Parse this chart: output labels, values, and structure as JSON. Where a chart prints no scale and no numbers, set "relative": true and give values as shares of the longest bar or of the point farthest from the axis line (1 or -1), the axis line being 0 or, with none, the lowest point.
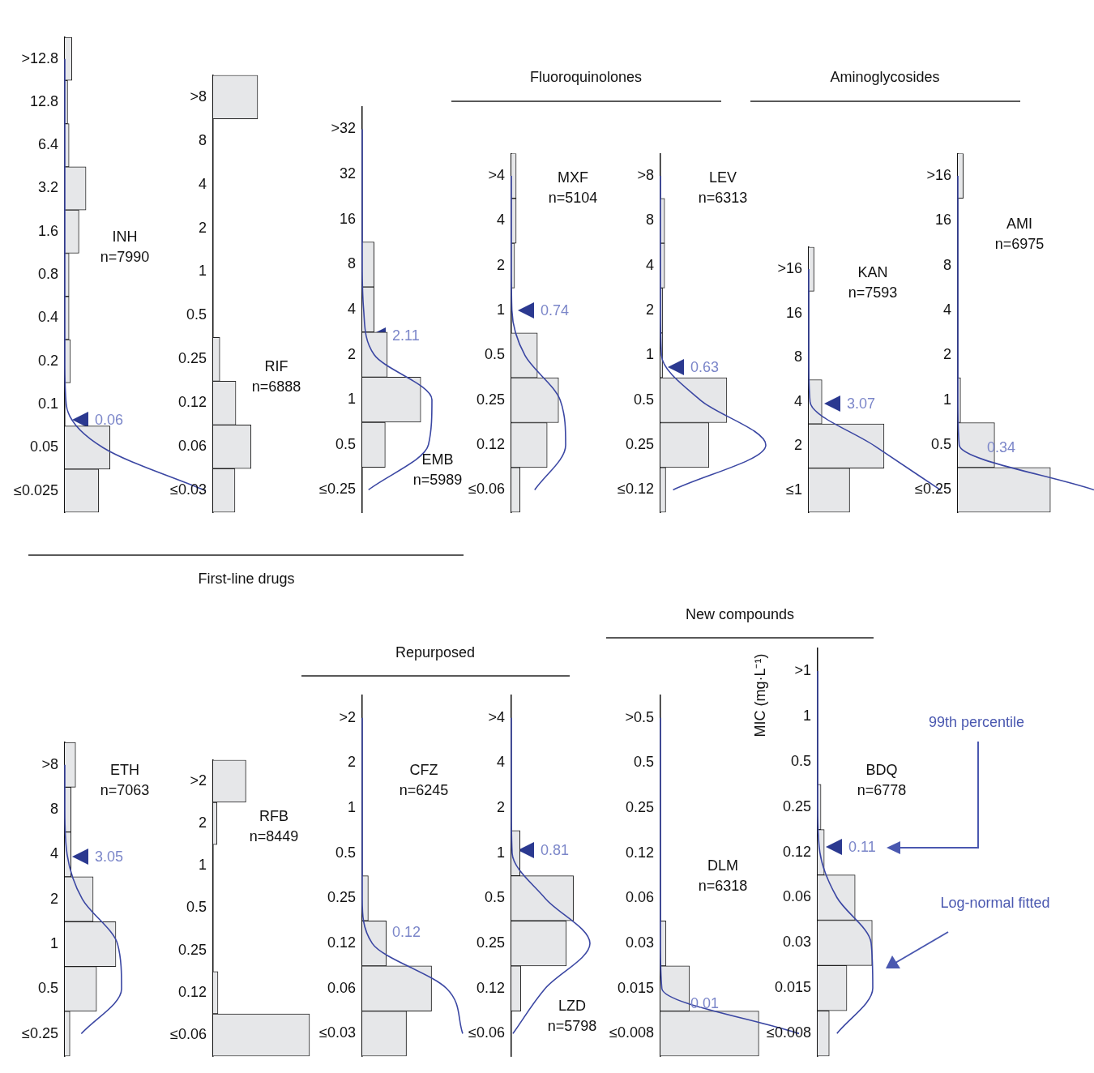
{
  "chart_data": [
    {
      "type": "bar",
      "orientation": "horizontal",
      "relative": true,
      "marker": "none",
      "title": "INH",
      "subtitle": "n=7990",
      "categories": [
        ">12.8",
        "12.8",
        "6.4",
        "3.2",
        "1.6",
        "0.8",
        "0.4",
        "0.2",
        "0.1",
        "0.05",
        "≤0.025"
      ],
      "series": [
        {
          "type": "bar",
          "color": "#e6e7e9",
          "values": [
            0.05,
            0.02,
            0.03,
            0.15,
            0.1,
            0.03,
            0.03,
            0.04,
            0,
            0.32,
            0.24
          ]
        },
        {
          "type": "line",
          "color": "#3b47a3",
          "values": [
            0,
            0,
            0,
            0,
            0,
            0,
            0,
            0,
            0.01,
            0.27,
            1
          ]
        }
      ],
      "annotations": [
        "0.06",
        "First-line drugs"
      ]
    },
    {
      "type": "bar",
      "orientation": "horizontal",
      "relative": true,
      "title": "RIF",
      "subtitle": "n=6888",
      "categories": [
        ">8",
        "8",
        "4",
        "2",
        "1",
        "0.5",
        "0.25",
        "0.12",
        "0.06",
        "≤0.03"
      ],
      "series": [
        {
          "type": "bar",
          "color": "#e6e7e9",
          "values": [
            1,
            0,
            0,
            0,
            0,
            0,
            0.15,
            0.51,
            0.85,
            0.49
          ]
        }
      ]
    },
    {
      "type": "bar",
      "orientation": "horizontal",
      "relative": true,
      "marker": "none",
      "title": "EMB",
      "subtitle": "n=5989",
      "categories": [
        ">32",
        "32",
        "16",
        "8",
        "4",
        "2",
        "1",
        "0.5",
        "≤0.25"
      ],
      "series": [
        {
          "type": "bar",
          "color": "#e6e7e9",
          "values": [
            0,
            0,
            0,
            0.17,
            0.17,
            0.36,
            0.84,
            0.33,
            0
          ]
        },
        {
          "type": "line",
          "color": "#3b47a3",
          "values": [
            0,
            0,
            0,
            0,
            0.02,
            0.17,
            1,
            0.95,
            0.09
          ]
        }
      ],
      "annotations": [
        "2.11"
      ]
    },
    {
      "type": "bar",
      "orientation": "horizontal",
      "relative": true,
      "marker": "none",
      "title": "MXF",
      "subtitle": "n=5104",
      "categories": [
        ">4",
        "4",
        "2",
        "1",
        "0.5",
        "0.25",
        "0.12",
        "≤0.06"
      ],
      "series": [
        {
          "type": "bar",
          "color": "#e6e7e9",
          "values": [
            0.09,
            0.09,
            0.06,
            0,
            0.48,
            0.87,
            0.66,
            0.16
          ]
        },
        {
          "type": "line",
          "color": "#3b47a3",
          "values": [
            0,
            0,
            0,
            0.01,
            0.25,
            0.9,
            1,
            0.43
          ]
        }
      ],
      "annotations": [
        "0.74",
        "Fluoroquinolones"
      ]
    },
    {
      "type": "bar",
      "orientation": "horizontal",
      "relative": true,
      "marker": "none",
      "title": "LEV",
      "subtitle": "n=6313",
      "categories": [
        ">8",
        "8",
        "4",
        "2",
        "1",
        "0.5",
        "0.25",
        "≤0.12"
      ],
      "series": [
        {
          "type": "bar",
          "color": "#e6e7e9",
          "values": [
            0,
            0.04,
            0.04,
            0.02,
            0.02,
            0.63,
            0.46,
            0.05
          ]
        },
        {
          "type": "line",
          "color": "#3b47a3",
          "values": [
            0,
            0,
            0,
            0,
            0.01,
            0.38,
            1,
            0.12
          ]
        }
      ],
      "annotations": [
        "0.63"
      ]
    },
    {
      "type": "bar",
      "orientation": "horizontal",
      "relative": true,
      "marker": "none",
      "title": "KAN",
      "subtitle": "n=7593",
      "categories": [
        ">16",
        "16",
        "8",
        "4",
        "2",
        "≤1"
      ],
      "series": [
        {
          "type": "bar",
          "color": "#e6e7e9",
          "values": [
            0.04,
            0,
            0,
            0.1,
            0.57,
            0.31
          ]
        },
        {
          "type": "line",
          "color": "#3b47a3",
          "values": [
            0,
            0,
            0,
            0.01,
            0.5,
            1
          ]
        }
      ],
      "annotations": [
        "3.07",
        "Aminoglycosides"
      ]
    },
    {
      "type": "bar",
      "orientation": "horizontal",
      "relative": true,
      "marker": "none",
      "title": "AMI",
      "subtitle": "n=6975",
      "categories": [
        ">16",
        "16",
        "8",
        "4",
        "2",
        "1",
        "0.5",
        "≤0.25"
      ],
      "series": [
        {
          "type": "bar",
          "color": "#e6e7e9",
          "values": [
            0.04,
            0,
            0,
            0,
            0,
            0.02,
            0.27,
            0.68
          ]
        },
        {
          "type": "line",
          "color": "#3b47a3",
          "values": [
            0,
            0,
            0,
            0,
            0,
            0,
            0.01,
            1
          ]
        }
      ],
      "annotations": [
        "0.34"
      ]
    },
    {
      "type": "bar",
      "orientation": "horizontal",
      "relative": true,
      "marker": "none",
      "title": "ETH",
      "subtitle": "n=7063",
      "categories": [
        ">8",
        "8",
        "4",
        "2",
        "1",
        "0.5",
        "≤0.25"
      ],
      "series": [
        {
          "type": "bar",
          "color": "#e6e7e9",
          "values": [
            0.19,
            0.11,
            0.11,
            0.5,
            0.9,
            0.56,
            0.09
          ]
        },
        {
          "type": "line",
          "color": "#3b47a3",
          "values": [
            0,
            0,
            0.04,
            0.31,
            0.93,
            1,
            0.29
          ]
        }
      ],
      "annotations": [
        "3.05"
      ]
    },
    {
      "type": "bar",
      "orientation": "horizontal",
      "relative": true,
      "title": "RFB",
      "subtitle": "n=8449",
      "categories": [
        ">2",
        "2",
        "1",
        "0.5",
        "0.25",
        "0.12",
        "≤0.06"
      ],
      "series": [
        {
          "type": "bar",
          "color": "#e6e7e9",
          "values": [
            0.34,
            0.04,
            0,
            0,
            0,
            0.05,
            1
          ]
        }
      ]
    },
    {
      "type": "bar",
      "orientation": "horizontal",
      "relative": true,
      "marker": "none",
      "title": "CFZ",
      "subtitle": "n=6245",
      "categories": [
        ">2",
        "2",
        "1",
        "0.5",
        "0.25",
        "0.12",
        "0.06",
        "≤0.03"
      ],
      "series": [
        {
          "type": "bar",
          "color": "#e6e7e9",
          "values": [
            0,
            0,
            0,
            0,
            0.06,
            0.24,
            0.69,
            0.44
          ]
        },
        {
          "type": "line",
          "color": "#3b47a3",
          "values": [
            0,
            0,
            0,
            0,
            0,
            0.1,
            0.84,
            1
          ]
        }
      ],
      "annotations": [
        "0.12",
        "Repurposed"
      ]
    },
    {
      "type": "bar",
      "orientation": "horizontal",
      "relative": true,
      "marker": "none",
      "title": "LZD",
      "subtitle": "n=5798",
      "categories": [
        ">4",
        "4",
        "2",
        "1",
        "0.5",
        "0.25",
        "0.12",
        "≤0.06"
      ],
      "series": [
        {
          "type": "bar",
          "color": "#e6e7e9",
          "values": [
            0,
            0,
            0,
            0.11,
            0.79,
            0.7,
            0.12,
            0
          ]
        },
        {
          "type": "line",
          "color": "#3b47a3",
          "values": [
            0,
            0,
            0,
            0.01,
            0.43,
            1,
            0.43,
            0.02
          ]
        }
      ],
      "annotations": [
        "0.81"
      ]
    },
    {
      "type": "bar",
      "orientation": "horizontal",
      "relative": true,
      "marker": "none",
      "title": "DLM",
      "subtitle": "n=6318",
      "categories": [
        ">0.5",
        "0.5",
        "0.25",
        "0.12",
        "0.06",
        "0.03",
        "0.015",
        "≤0.008"
      ],
      "series": [
        {
          "type": "bar",
          "color": "#e6e7e9",
          "values": [
            0,
            0,
            0,
            0,
            0,
            0.04,
            0.21,
            0.71
          ]
        },
        {
          "type": "line",
          "color": "#3b47a3",
          "values": [
            0,
            0,
            0,
            0,
            0,
            0,
            0.01,
            1
          ]
        }
      ],
      "annotations": [
        "0.01",
        "New compounds"
      ]
    },
    {
      "type": "bar",
      "orientation": "horizontal",
      "relative": true,
      "marker": "none",
      "title": "BDQ",
      "subtitle": "n=6778",
      "ylabel": "MIC (mg·L⁻¹)",
      "categories": [
        ">1",
        "1",
        "0.5",
        "0.25",
        "0.12",
        "0.06",
        "0.03",
        "0.015",
        "≤0.008"
      ],
      "series": [
        {
          "type": "bar",
          "color": "#e6e7e9",
          "values": [
            0,
            0,
            0,
            0.06,
            0.12,
            0.68,
            0.99,
            0.53,
            0.21
          ]
        },
        {
          "type": "line",
          "color": "#3b47a3",
          "values": [
            0,
            0,
            0,
            0,
            0.04,
            0.35,
            0.97,
            1,
            0.35
          ]
        }
      ],
      "annotations": [
        "0.11",
        "99th percentile",
        "Log-normal fitted"
      ]
    }
  ]
}
